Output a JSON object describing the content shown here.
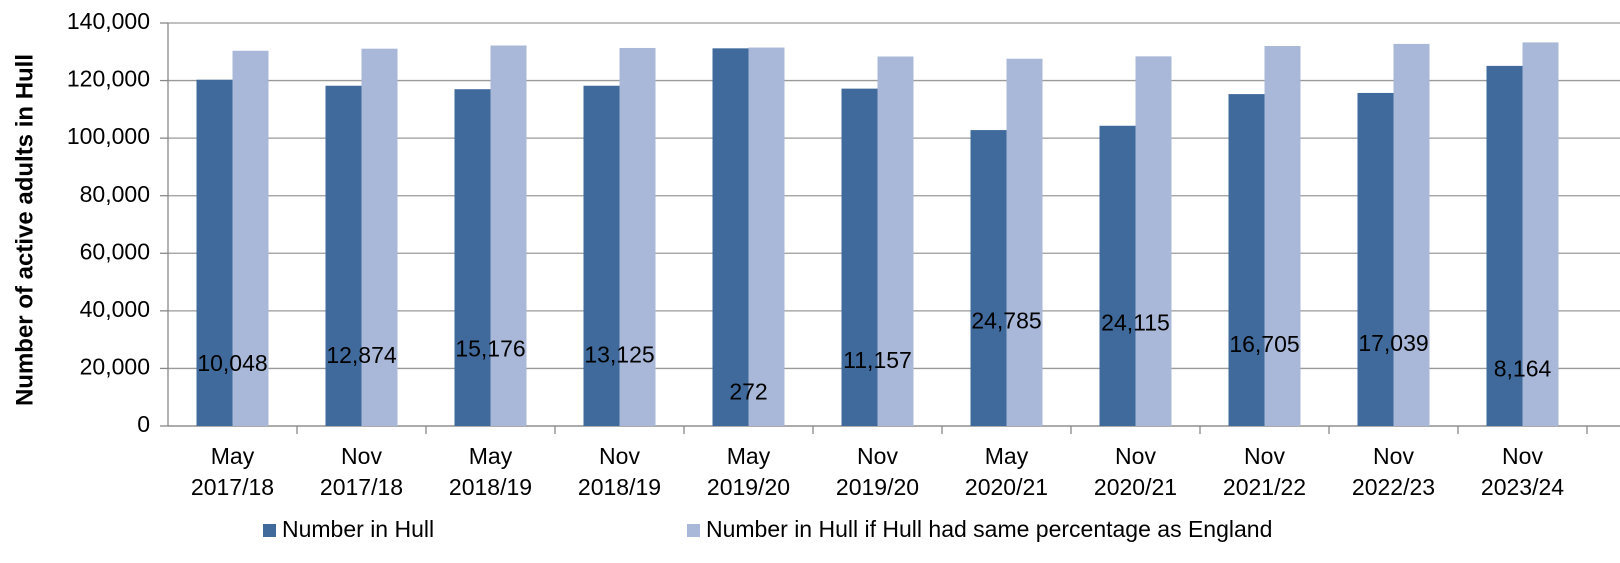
{
  "chart_data": {
    "type": "bar",
    "y_axis_label": "Number of active adults in Hull",
    "categories": [
      [
        "May",
        "2017/18"
      ],
      [
        "Nov",
        "2017/18"
      ],
      [
        "May",
        "2018/19"
      ],
      [
        "Nov",
        "2018/19"
      ],
      [
        "May",
        "2019/20"
      ],
      [
        "Nov",
        "2019/20"
      ],
      [
        "May",
        "2020/21"
      ],
      [
        "Nov",
        "2020/21"
      ],
      [
        "Nov",
        "2021/22"
      ],
      [
        "Nov",
        "2022/23"
      ],
      [
        "Nov",
        "2023/24"
      ]
    ],
    "series": [
      {
        "name": "Number in Hull",
        "color": "#3f6a9b",
        "values": [
          120300,
          118200,
          117000,
          118200,
          131200,
          117200,
          102800,
          104300,
          115300,
          115700,
          125100
        ]
      },
      {
        "name": "Number in Hull if Hull had same percentage as England",
        "color": "#a9b8d8",
        "values": [
          130348,
          131074,
          132176,
          131325,
          131472,
          128357,
          127585,
          128415,
          132005,
          132739,
          133264
        ]
      }
    ],
    "differences": [
      10048,
      12874,
      15176,
      13125,
      272,
      11157,
      24785,
      24115,
      16705,
      17039,
      8164
    ],
    "difference_labels": [
      "10,048",
      "12,874",
      "15,176",
      "13,125",
      "272",
      "11,157",
      "24,785",
      "24,115",
      "16,705",
      "17,039",
      "8,164"
    ],
    "ylim": [
      0,
      140000
    ],
    "yticks": [
      0,
      {
        "value": 20000,
        "label": "20,000"
      },
      {
        "value": 40000,
        "label": "40,000"
      },
      {
        "value": 60000,
        "label": "60,000"
      },
      {
        "value": 80000,
        "label": "80,000"
      },
      {
        "value": 100000,
        "label": "100,000"
      },
      {
        "value": 120000,
        "label": "120,000"
      },
      {
        "value": 140000,
        "label": "140,000"
      }
    ],
    "grid": true
  }
}
